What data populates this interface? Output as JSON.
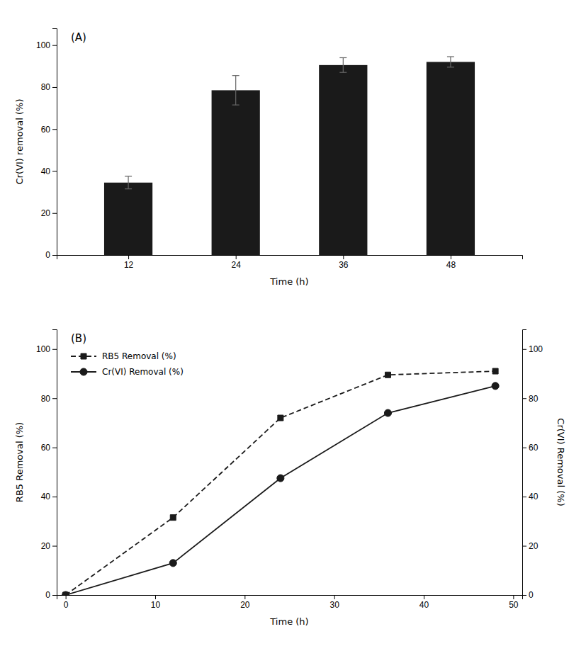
{
  "chart_data": [
    {
      "type": "bar",
      "annotations": [
        "(A)"
      ],
      "xlabel": "Time (h)",
      "ylabel": "Cr(VI) removal (%)",
      "x": [
        12,
        24,
        36,
        48
      ],
      "values": [
        34.5,
        78.5,
        90.5,
        92.0
      ],
      "errors": [
        3.0,
        7.0,
        3.5,
        2.5
      ],
      "color": "#1a1a1a",
      "xlim": [
        4,
        56
      ],
      "xticks": [
        12,
        24,
        36,
        48
      ],
      "ylim": [
        0,
        108
      ],
      "yticks": [
        0,
        20,
        40,
        60,
        80,
        100
      ]
    },
    {
      "type": "line",
      "annotations": [
        "(B)"
      ],
      "xlabel": "Time (h)",
      "ylabel": "RB5 Removal (%)",
      "y2label": "Cr(VI) Removal (%)",
      "x": [
        0,
        12,
        24,
        36,
        48
      ],
      "series": [
        {
          "name": "RB5 Removal (%)",
          "color": "#1a1a1a",
          "marker": "square",
          "line_style": "dashed",
          "values": [
            0,
            31.5,
            72.0,
            89.5,
            91.0
          ]
        },
        {
          "name": "Cr(VI) Removal (%)",
          "color": "#1a1a1a",
          "marker": "circle",
          "line_style": "solid",
          "axis": "y2",
          "values": [
            0,
            13.0,
            47.5,
            74.0,
            85.0
          ]
        }
      ],
      "xlim": [
        -1,
        51
      ],
      "xticks": [
        0,
        10,
        20,
        30,
        40,
        50
      ],
      "ylim": [
        0,
        108
      ],
      "yticks": [
        0,
        20,
        40,
        60,
        80,
        100
      ],
      "y2lim": [
        0,
        108
      ],
      "y2ticks": [
        0,
        20,
        40,
        60,
        80,
        100
      ],
      "legend": "upper left"
    }
  ]
}
